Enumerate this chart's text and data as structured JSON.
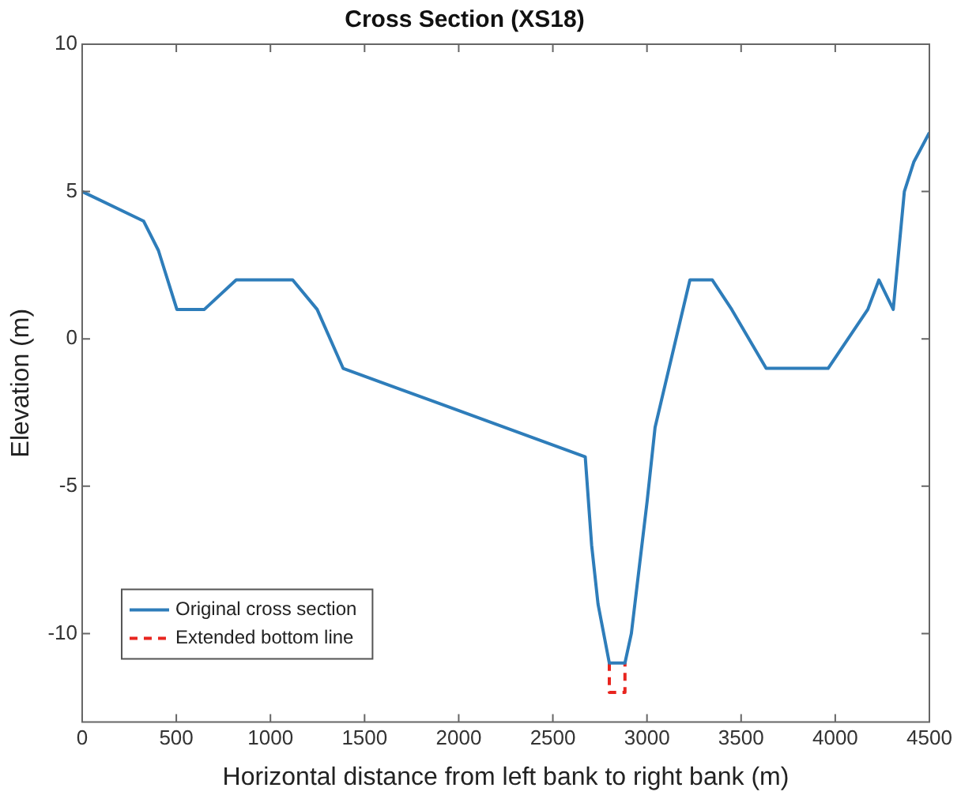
{
  "chart_data": {
    "type": "line",
    "title": "Cross Section (XS18)",
    "xlabel": "Horizontal distance from left bank to right bank (m)",
    "ylabel": "Elevation (m)",
    "xlim": [
      0,
      4500
    ],
    "xticks": [
      0,
      500,
      1000,
      1500,
      2000,
      2500,
      3000,
      3500,
      4000,
      4500
    ],
    "ylim": [
      -13,
      10
    ],
    "yticks": [
      -10,
      -5,
      0,
      5,
      10
    ],
    "grid": false,
    "legend": "bottom left",
    "marker": "none",
    "series": [
      {
        "name": "Original cross section",
        "color": "#2e7dba",
        "line_style": "solid",
        "x": [
          0,
          326,
          405,
          503,
          649,
          818,
          1118,
          1248,
          1386,
          2672,
          2706,
          2740,
          2800,
          2883,
          2917,
          3001,
          3043,
          3228,
          3347,
          3450,
          3633,
          3962,
          4173,
          4232,
          4308,
          4367,
          4417,
          4500
        ],
        "values": [
          5,
          4,
          3,
          1,
          1,
          2,
          2,
          1,
          -1,
          -4,
          -7,
          -9,
          -11,
          -11,
          -10,
          -5.5,
          -3,
          2,
          2,
          1,
          -1,
          -1,
          1,
          2,
          1,
          5,
          6,
          7
        ]
      },
      {
        "name": "Extended bottom line",
        "color": "#e8251f",
        "line_style": "dashed",
        "x": [
          2800,
          2800,
          2883,
          2883
        ],
        "values": [
          -11,
          -12,
          -12,
          -11
        ]
      }
    ]
  }
}
